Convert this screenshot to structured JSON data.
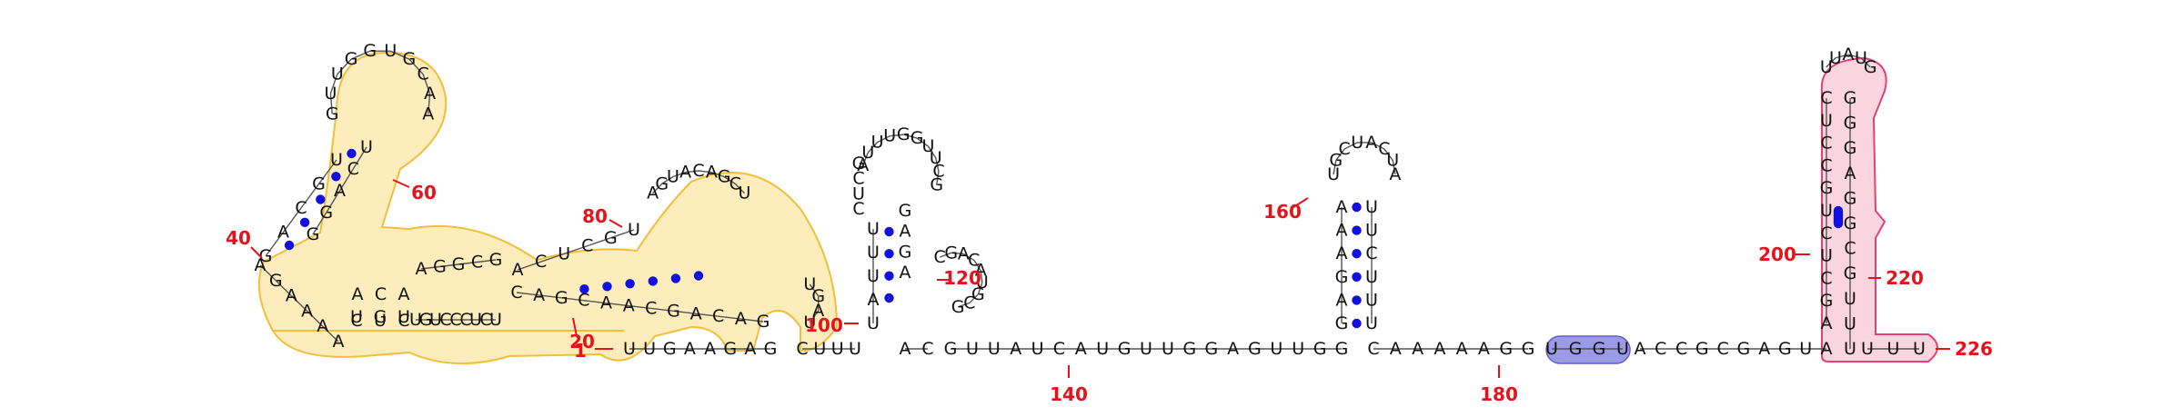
{
  "colors": {
    "bond": "#1010e0",
    "backbone": "#555555",
    "number": "#e3141b",
    "region_fill": "#fdeab0",
    "region_stroke": "#f2bf3a",
    "pink_fill": "#f9ccd9",
    "pink_stroke": "#e14277",
    "purple_fill": "#9a9ae6",
    "purple_stroke": "#6060c8"
  },
  "position_numbers": [
    "1",
    "20",
    "40",
    "60",
    "80",
    "100",
    "120",
    "140",
    "160",
    "180",
    "200",
    "220",
    "226"
  ],
  "strand_5p": "UUGAAGAG",
  "helix_4way_5p": "CUC",
  "bulge_left": "AAAAGA",
  "helix_left_5p": "GACGU",
  "hairpin_left": "GUUGGUGCAA",
  "helix_left_3p": "UCAGG",
  "helix_4way_3p": "ACA",
  "internal_top": "AGGCG",
  "helix_right_5p": "ACUCGU",
  "hairpin_right": "AGUACAGCU",
  "small_hairpin": "UGAU",
  "helix_right_3p": "GACAGCAACGAC",
  "internal_bottom": "UCUCCCUGU",
  "helix_4way_3p2": "UGU",
  "linker_a": "CUUU",
  "stem2_5p": "UAUUU",
  "stem2_mid": "CUCG",
  "hairpin2": "AUUUGGUUCG",
  "stem2_3p": "GAGA",
  "branch_hairpin": "CGACAUGCG",
  "linker_b": "AC",
  "linker_c": "GUUAUCAUGUUGGAGUUGG",
  "stem3_5p": "GAGAAA",
  "hairpin3": "UGCUACUA",
  "stem3_3p": "UUCUUU",
  "linker_d": "CAAAAAGG",
  "highlight_ggu": "UGGU",
  "linker_e": "ACCGCGAGUA",
  "stem4_5p": "AGCUCUGCCUC",
  "hairpin4": "UUAUG",
  "stem4_3p": "GGGAGGCGUUU",
  "tail_3p": "UUU"
}
